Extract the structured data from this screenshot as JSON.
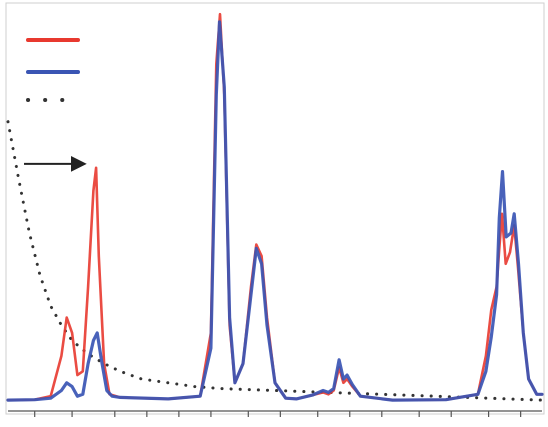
{
  "chart_data": {
    "type": "line",
    "title": "",
    "xlabel": "",
    "ylabel": "",
    "grid": false,
    "legend_position": "top-left",
    "xlim": [
      0,
      100
    ],
    "ylim": [
      0,
      100
    ],
    "x_ticks": [
      5,
      12,
      20,
      26,
      32,
      38,
      45,
      51,
      58,
      64,
      70,
      77,
      83,
      90,
      96
    ],
    "series": [
      {
        "color": "#e8392f",
        "style": "solid",
        "points": [
          [
            0,
            0.5
          ],
          [
            5,
            0.6
          ],
          [
            8,
            1.5
          ],
          [
            10,
            12
          ],
          [
            11,
            22
          ],
          [
            12,
            18
          ],
          [
            13,
            7
          ],
          [
            14,
            8
          ],
          [
            15,
            30
          ],
          [
            16,
            55
          ],
          [
            16.5,
            61
          ],
          [
            17,
            38
          ],
          [
            18,
            10
          ],
          [
            19,
            2
          ],
          [
            21,
            1.2
          ],
          [
            30,
            0.8
          ],
          [
            36,
            1.5
          ],
          [
            38,
            18
          ],
          [
            39,
            88
          ],
          [
            39.7,
            101
          ],
          [
            40.5,
            80
          ],
          [
            41.5,
            20
          ],
          [
            42.5,
            5
          ],
          [
            44,
            10
          ],
          [
            45.5,
            30
          ],
          [
            46.5,
            41
          ],
          [
            47.5,
            38
          ],
          [
            48.5,
            22
          ],
          [
            50,
            5
          ],
          [
            52,
            1
          ],
          [
            54,
            0.8
          ],
          [
            57,
            1.8
          ],
          [
            59,
            2.5
          ],
          [
            60,
            2
          ],
          [
            61,
            3
          ],
          [
            62,
            9
          ],
          [
            62.8,
            5
          ],
          [
            63.5,
            6
          ],
          [
            64.5,
            4
          ],
          [
            66,
            1.5
          ],
          [
            72,
            0.5
          ],
          [
            82,
            0.6
          ],
          [
            88,
            2
          ],
          [
            89.5,
            12
          ],
          [
            90.5,
            24
          ],
          [
            91.5,
            30
          ],
          [
            92,
            40
          ],
          [
            92.5,
            49
          ],
          [
            93.2,
            36
          ],
          [
            94,
            39
          ],
          [
            94.8,
            46
          ],
          [
            95.5,
            35
          ],
          [
            96.5,
            18
          ],
          [
            97.5,
            6
          ],
          [
            99,
            2
          ],
          [
            100,
            2
          ]
        ]
      },
      {
        "color": "#3a55b4",
        "style": "solid",
        "points": [
          [
            0,
            0.5
          ],
          [
            5,
            0.6
          ],
          [
            8,
            1
          ],
          [
            10,
            3
          ],
          [
            11,
            5
          ],
          [
            12,
            4
          ],
          [
            13,
            1.5
          ],
          [
            14,
            2
          ],
          [
            15,
            10
          ],
          [
            16,
            16
          ],
          [
            16.7,
            18
          ],
          [
            17.5,
            11
          ],
          [
            18.5,
            3
          ],
          [
            19.5,
            1.5
          ],
          [
            21,
            1.2
          ],
          [
            30,
            0.8
          ],
          [
            36,
            1.5
          ],
          [
            38,
            14
          ],
          [
            39,
            80
          ],
          [
            39.6,
            99
          ],
          [
            40.5,
            82
          ],
          [
            41.5,
            22
          ],
          [
            42.5,
            5
          ],
          [
            44,
            10
          ],
          [
            45.5,
            28
          ],
          [
            46.5,
            40
          ],
          [
            47.5,
            36
          ],
          [
            48.5,
            20
          ],
          [
            50,
            5
          ],
          [
            52,
            1
          ],
          [
            54,
            0.8
          ],
          [
            57,
            1.8
          ],
          [
            59,
            3
          ],
          [
            60,
            2.5
          ],
          [
            61,
            3.5
          ],
          [
            62,
            11
          ],
          [
            62.8,
            6
          ],
          [
            63.5,
            7
          ],
          [
            64.5,
            4.5
          ],
          [
            66,
            1.5
          ],
          [
            72,
            0.5
          ],
          [
            82,
            0.6
          ],
          [
            88,
            2
          ],
          [
            89.5,
            8
          ],
          [
            90.5,
            17
          ],
          [
            91.5,
            28
          ],
          [
            92,
            48
          ],
          [
            92.6,
            60
          ],
          [
            93.3,
            43
          ],
          [
            94.2,
            44
          ],
          [
            94.8,
            49
          ],
          [
            95.6,
            36
          ],
          [
            96.5,
            18
          ],
          [
            97.5,
            6
          ],
          [
            99,
            2
          ],
          [
            100,
            2
          ]
        ]
      },
      {
        "color": "#333333",
        "style": "dotted",
        "points": [
          [
            0,
            73
          ],
          [
            2,
            58
          ],
          [
            4,
            44
          ],
          [
            6,
            33
          ],
          [
            8,
            25
          ],
          [
            10,
            20
          ],
          [
            12,
            16
          ],
          [
            15,
            12.5
          ],
          [
            18,
            10
          ],
          [
            21,
            8
          ],
          [
            25,
            6
          ],
          [
            30,
            5
          ],
          [
            35,
            4
          ],
          [
            40,
            3.5
          ],
          [
            50,
            3
          ],
          [
            60,
            2.5
          ],
          [
            70,
            2
          ],
          [
            80,
            1.5
          ],
          [
            90,
            1
          ],
          [
            100,
            0.5
          ]
        ]
      }
    ],
    "annotations": [
      {
        "type": "arrow",
        "from": [
          3,
          62
        ],
        "to": [
          14,
          62
        ]
      }
    ]
  }
}
